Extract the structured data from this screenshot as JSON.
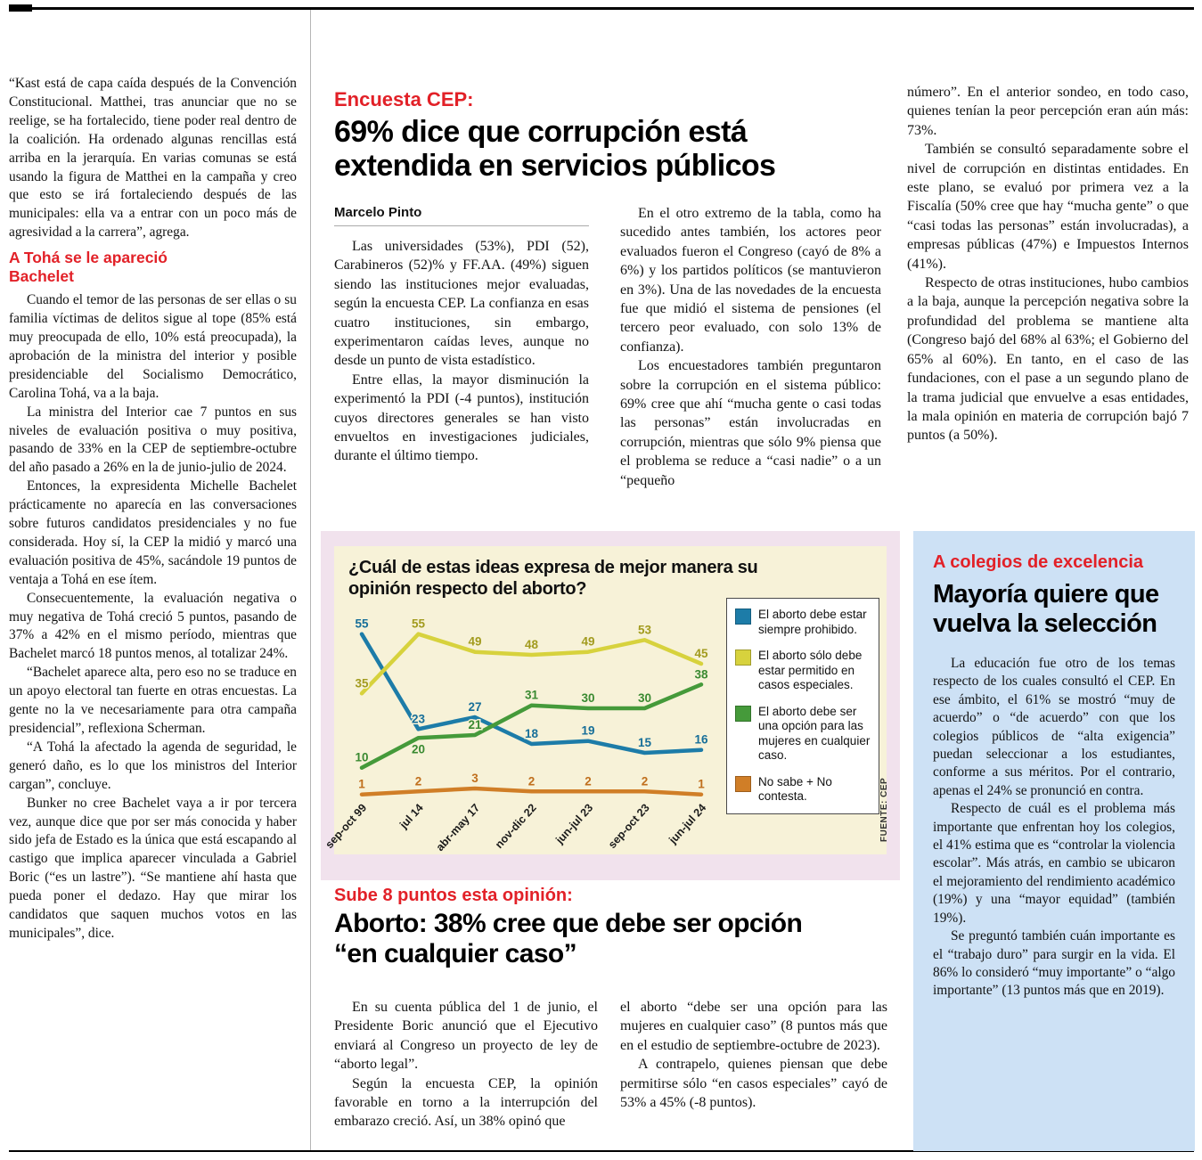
{
  "colors": {
    "accent_red": "#e22128",
    "chart_section_bg": "#f1e2ed",
    "chart_panel_bg": "#f7f2d8",
    "sidebar_bg": "#cde1f5"
  },
  "left_column": {
    "intro": "“Kast está de capa caída después de la Convención Constitucional. Matthei, tras anunciar que no se reelige, se ha fortalecido, tiene poder real dentro de la coalición. Ha ordenado algunas rencillas está arriba en la jerarquía. En varias comunas se está usando la figura de Matthei en la campaña y creo que esto se irá fortaleciendo después de las municipales: ella va a entrar con un poco más de agresividad a la carrera”, agrega.",
    "heading": "A Tohá se le apareció Bachelet",
    "paragraphs": [
      "Cuando el temor de las personas de ser ellas o su familia víctimas de delitos sigue al tope (85% está muy preocupada de ello, 10% está preocupada), la aprobación de la ministra del interior y posible presidenciable del Socialismo Democrático, Carolina Tohá, va a la baja.",
      "La ministra del Interior cae 7 puntos en sus niveles de evaluación positiva o muy positiva, pasando de 33% en la CEP de septiembre-octubre del año pasado a 26% en la de junio-julio de 2024.",
      "Entonces, la expresidenta Michelle Bachelet prácticamente no aparecía en las conversaciones sobre futuros candidatos presidenciales y no fue considerada. Hoy sí, la CEP la midió y marcó una evaluación positiva de 45%, sacándole 19 puntos de ventaja a Tohá en ese ítem.",
      "Consecuentemente, la evaluación negativa o muy negativa de Tohá creció 5 puntos, pasando de 37% a 42% en el mismo período, mientras que Bachelet marcó 18 puntos menos, al totalizar 24%.",
      "“Bachelet aparece alta, pero eso no se traduce en un apoyo electoral tan fuerte en otras encuestas. La gente no la ve necesariamente para otra campaña presidencial”, reflexiona Scherman.",
      "“A Tohá la afectado la agenda de seguridad, le generó daño, es lo que los ministros del Interior cargan”, concluye.",
      "Bunker no cree Bachelet vaya a ir por tercera vez, aunque dice que por ser más conocida y haber sido jefa de Estado es la única que está escapando al castigo que implica aparecer vinculada a Gabriel Boric (“es un lastre”). “Se mantiene ahí hasta que pueda poner el dedazo. Hay que mirar los candidatos que saquen muchos votos en las municipales”, dice."
    ]
  },
  "main_article": {
    "kicker": "Encuesta CEP:",
    "headline": "69% dice que corrupción está extendida en servicios públicos",
    "byline": "Marcelo Pinto",
    "col1": [
      "Las universidades (53%), PDI (52), Carabineros (52)% y FF.AA. (49%) siguen siendo las instituciones mejor evaluadas, según la encuesta CEP. La confianza en esas cuatro instituciones, sin embargo, experimentaron caídas leves, aunque no desde un punto de vista estadístico.",
      "Entre ellas, la mayor disminución la experimentó la PDI (-4 puntos), institución cuyos directores generales se han visto envueltos en investigaciones judiciales, durante el último tiempo."
    ],
    "col2": [
      "En el otro extremo de la tabla, como ha sucedido antes también, los actores peor evaluados fueron el Congreso (cayó de 8% a 6%) y los partidos políticos (se mantuvieron en 3%). Una de las novedades de la encuesta fue que midió el sistema de pensiones (el tercero peor evaluado, con solo 13% de confianza).",
      "Los encuestadores también preguntaron sobre la corrupción en el sistema público: 69% cree que ahí “mucha gente o casi todas las personas” están involucradas en corrupción, mientras que sólo 9% piensa que el problema se reduce a “casi nadie” o a un “pequeño"
    ],
    "col3": [
      "número”. En el anterior sondeo, en todo caso, quienes tenían la peor percepción eran aún más: 73%.",
      "También se consultó separadamente sobre el nivel de corrupción en distintas entidades. En este plano, se evaluó por primera vez a la Fiscalía (50% cree que hay “mucha gente” o que “casi todas las personas” están involucradas), a empresas públicas (47%) e Impuestos Internos (41%).",
      "Respecto de otras instituciones, hubo cambios a la baja, aunque la percepción negativa sobre la profundidad del problema se mantiene alta (Congreso bajó del 68% al 63%; el Gobierno del 65% al 60%). En tanto, en el caso de las fundaciones, con el pase a un segundo plano de la trama judicial que envuelve a esas entidades, la mala opinión en materia de corrupción bajó 7 puntos (a 50%)."
    ]
  },
  "chart_section": {
    "source": "FUENTE: CEP"
  },
  "chart_data": {
    "type": "line",
    "title": "¿Cuál de estas ideas expresa de mejor manera su opinión respecto del aborto?",
    "categories": [
      "sep-oct 99",
      "jul 14",
      "abr-may 17",
      "nov-dic 22",
      "jun-jul 23",
      "sep-oct 23",
      "jun-jul 24"
    ],
    "series": [
      {
        "name": "El aborto debe estar siempre prohibido.",
        "color": "#1d7ca8",
        "label_color": "#176f99",
        "values": [
          55,
          23,
          27,
          18,
          19,
          15,
          16
        ]
      },
      {
        "name": "El aborto sólo debe estar permitido en casos especiales.",
        "color": "#d7d23d",
        "label_color": "#a29b1e",
        "values": [
          35,
          55,
          49,
          48,
          49,
          53,
          45
        ]
      },
      {
        "name": "El aborto debe ser una opción para las mujeres en cualquier caso.",
        "color": "#459a3a",
        "label_color": "#3a8a31",
        "values": [
          10,
          20,
          21,
          31,
          30,
          30,
          38
        ]
      },
      {
        "name": "No sabe + No contesta.",
        "color": "#d07e27",
        "label_color": "#c06f1d",
        "values": [
          1,
          2,
          3,
          2,
          2,
          2,
          1
        ]
      }
    ],
    "ylim": [
      0,
      60
    ],
    "grid": false,
    "legend_position": "right"
  },
  "abortion_article": {
    "kicker": "Sube 8 puntos esta opinión:",
    "headline": "Aborto: 38% cree que debe ser opción “en cualquier caso”",
    "col1": [
      "En su cuenta pública del 1 de junio, el Presidente Boric anunció que el Ejecutivo enviará al Congreso un proyecto de ley de “aborto legal”.",
      "Según la encuesta CEP, la opinión favorable en torno a la interrupción del embarazo creció. Así, un 38% opinó que"
    ],
    "col2": [
      "el aborto “debe ser una opción para las mujeres en cualquier caso” (8 puntos más que en el estudio de septiembre-octubre de 2023).",
      "A contrapelo, quienes piensan que debe permitirse sólo “en casos especiales” cayó de 53% a 45% (-8 puntos)."
    ]
  },
  "sidebar": {
    "kicker": "A colegios de excelencia",
    "headline": "Mayoría quiere que vuelva la selección",
    "paragraphs": [
      "La educación fue otro de los temas respecto de los cuales consultó el CEP. En ese ámbito, el 61% se mostró “muy de acuerdo” o “de acuerdo” con que los colegios públicos de “alta exigencia” puedan seleccionar a los estudiantes, conforme a sus méritos. Por el contrario, apenas el 24% se pronunció en contra.",
      "Respecto de cuál es el problema más importante que enfrentan hoy los colegios, el 41% estima que es “controlar la violencia escolar”. Más atrás, en cambio se ubicaron el mejoramiento del rendimiento académico (19%) y una “mayor equidad” (también 19%).",
      "Se preguntó también cuán importante es el “trabajo duro” para surgir en la vida. El 86% lo consideró “muy importante” o “algo importante” (13 puntos más que en 2019)."
    ]
  }
}
